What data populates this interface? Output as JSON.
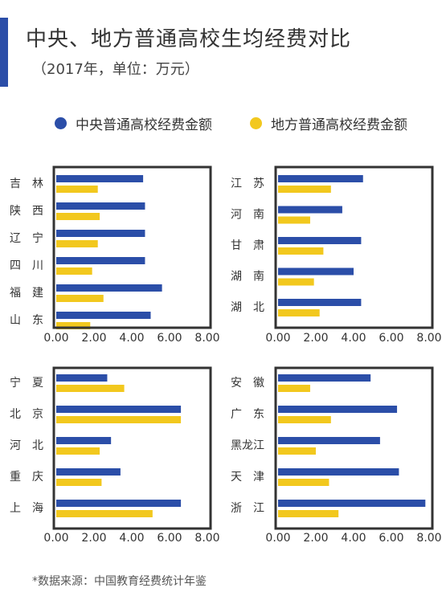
{
  "header": {
    "title": "中央、地方普通高校生均经费对比",
    "subtitle": "（2017年，单位：万元）"
  },
  "legend": [
    {
      "label": "中央普通高校经费金额",
      "color": "#2b4ea8"
    },
    {
      "label": "地方普通高校经费金额",
      "color": "#f2c81e"
    }
  ],
  "footer": {
    "source": "*数据来源：中国教育经费统计年鉴"
  },
  "chart_data": [
    {
      "type": "bar",
      "orientation": "horizontal",
      "categories": [
        "吉　林",
        "陕　西",
        "辽　宁",
        "四　川",
        "福　建",
        "山　东"
      ],
      "series": [
        {
          "name": "中央普通高校经费金额",
          "values": [
            4.6,
            4.7,
            4.7,
            4.7,
            5.6,
            5.0
          ]
        },
        {
          "name": "地方普通高校经费金额",
          "values": [
            2.2,
            2.3,
            2.2,
            1.9,
            2.5,
            1.8
          ]
        }
      ],
      "xticks": [
        "0.00",
        "2.00",
        "4.00",
        "6.00",
        "8.00"
      ],
      "xlim": [
        0,
        8
      ]
    },
    {
      "type": "bar",
      "orientation": "horizontal",
      "categories": [
        "江　苏",
        "河　南",
        "甘　肃",
        "湖　南",
        "湖　北"
      ],
      "series": [
        {
          "name": "中央普通高校经费金额",
          "values": [
            4.5,
            3.4,
            4.4,
            4.0,
            4.4
          ]
        },
        {
          "name": "地方普通高校经费金额",
          "values": [
            2.8,
            1.7,
            2.4,
            1.9,
            2.2
          ]
        }
      ],
      "xticks": [
        "0.00",
        "2.00",
        "4.00",
        "6.00",
        "8.00"
      ],
      "xlim": [
        0,
        8
      ]
    },
    {
      "type": "bar",
      "orientation": "horizontal",
      "categories": [
        "宁　夏",
        "北　京",
        "河　北",
        "重　庆",
        "上　海"
      ],
      "series": [
        {
          "name": "中央普通高校经费金额",
          "values": [
            2.7,
            6.6,
            2.9,
            3.4,
            6.6
          ]
        },
        {
          "name": "地方普通高校经费金额",
          "values": [
            3.6,
            6.6,
            2.3,
            2.4,
            5.1
          ]
        }
      ],
      "xticks": [
        "0.00",
        "2.00",
        "4.00",
        "6.00",
        "8.00"
      ],
      "xlim": [
        0,
        8
      ]
    },
    {
      "type": "bar",
      "orientation": "horizontal",
      "categories": [
        "安　徽",
        "广　东",
        "黑龙江",
        "天　津",
        "浙　江"
      ],
      "series": [
        {
          "name": "中央普通高校经费金额",
          "values": [
            4.9,
            6.3,
            5.4,
            6.4,
            7.8
          ]
        },
        {
          "name": "地方普通高校经费金额",
          "values": [
            1.7,
            2.8,
            2.0,
            2.7,
            3.2
          ]
        }
      ],
      "xticks": [
        "0.00",
        "2.00",
        "4.00",
        "6.00",
        "8.00"
      ],
      "xlim": [
        0,
        8
      ]
    }
  ]
}
